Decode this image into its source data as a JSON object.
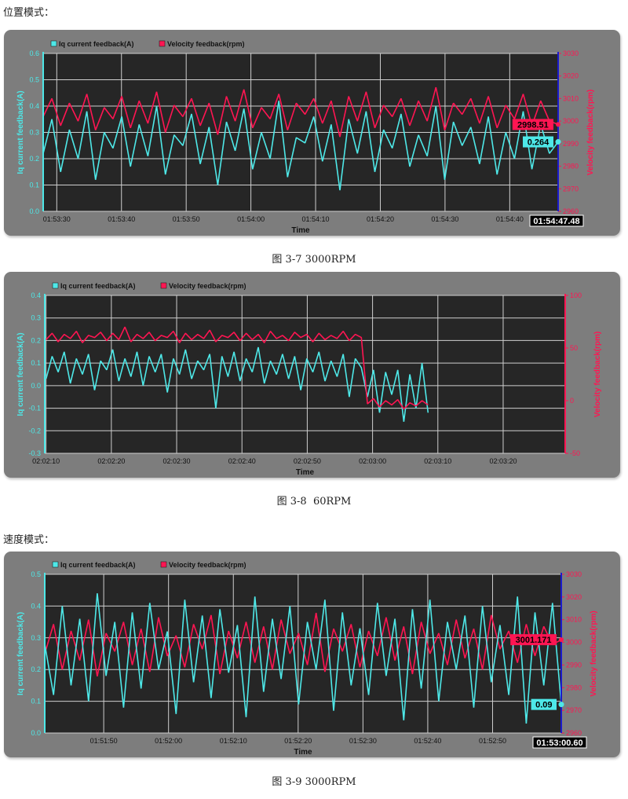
{
  "sections": {
    "position_mode": "位置模式：",
    "speed_mode": "速度模式："
  },
  "captions": [
    "图 3-7 3000RPM",
    "图 3-8  60RPM",
    "图 3-9 3000RPM"
  ],
  "colors": {
    "iq": "#4ee8e8",
    "velocity": "#ff1552",
    "plot_bg": "#262626",
    "panel_bg": "#7d7d7d",
    "grid": "#cfcfcf",
    "cursor_axis": "#1a1acc"
  },
  "chart_data": [
    {
      "type": "line",
      "legend": [
        "Iq current feedback(A)",
        "Velocity feedback(rpm)"
      ],
      "legend_placement": "top-left",
      "xlabel": "Time",
      "ylabel_left": "Iq current feedback(A)",
      "ylabel_right": "Velocity feedback(rpm)",
      "x_range": [
        "01:53:27.9",
        "01:54:47.48"
      ],
      "x_ticks": [
        "01:53:30",
        "01:53:40",
        "01:53:50",
        "01:54:00",
        "01:54:10",
        "01:54:20",
        "01:54:30",
        "01:54:40"
      ],
      "ylim_left": [
        0,
        0.6
      ],
      "y_ticks_left": [
        "0.0",
        "0.1",
        "0.2",
        "0.3",
        "0.4",
        "0.5",
        "0.6"
      ],
      "ylim_right": [
        2960,
        3030
      ],
      "y_ticks_right": [
        "2960",
        "2970",
        "2980",
        "2990",
        "3000",
        "3010",
        "3020",
        "3030"
      ],
      "grid": true,
      "right_axis_color": "cursor",
      "cursor_time": "01:54:47.48",
      "cursor_values": {
        "velocity": "2998.51",
        "iq": "0.264"
      },
      "series": [
        {
          "name": "Iq current feedback(A)",
          "x_range": [
            "01:53:27.9",
            "01:54:47.48"
          ],
          "values": [
            0.22,
            0.35,
            0.15,
            0.31,
            0.2,
            0.38,
            0.12,
            0.3,
            0.24,
            0.36,
            0.17,
            0.33,
            0.21,
            0.4,
            0.14,
            0.29,
            0.25,
            0.37,
            0.18,
            0.32,
            0.1,
            0.34,
            0.23,
            0.39,
            0.16,
            0.3,
            0.2,
            0.42,
            0.13,
            0.28,
            0.26,
            0.36,
            0.19,
            0.33,
            0.08,
            0.35,
            0.22,
            0.38,
            0.15,
            0.31,
            0.24,
            0.37,
            0.17,
            0.29,
            0.21,
            0.4,
            0.12,
            0.34,
            0.25,
            0.32,
            0.18,
            0.36,
            0.14,
            0.3,
            0.2,
            0.38,
            0.16,
            0.33,
            0.22,
            0.264
          ]
        },
        {
          "name": "Velocity feedback(rpm)",
          "x_range": [
            "01:53:27.9",
            "01:54:47.48"
          ],
          "values": [
            3002,
            3010,
            2998,
            3008,
            3000,
            3012,
            2996,
            3006,
            3001,
            3011,
            2997,
            3009,
            2999,
            3013,
            2995,
            3007,
            3002,
            3010,
            2998,
            3008,
            2994,
            3011,
            3000,
            3014,
            2997,
            3006,
            3001,
            3012,
            2996,
            3008,
            3003,
            3010,
            2999,
            3009,
            2993,
            3011,
            3000,
            3013,
            2997,
            3007,
            3002,
            3010,
            2998,
            3009,
            3000,
            3015,
            2996,
            3008,
            3003,
            3010,
            2999,
            3011,
            2997,
            3007,
            3001,
            3012,
            2998,
            3009,
            3000,
            2998.51
          ]
        }
      ]
    },
    {
      "type": "line",
      "legend": [
        "Iq current feedback(A)",
        "Velocity feedback(rpm)"
      ],
      "legend_placement": "top-left",
      "xlabel": "Time",
      "ylabel_left": "Iq current feedback(A)",
      "ylabel_right": "Velocity feedback(rpm)",
      "x_range": [
        "02:02:09.8",
        "02:03:29.5"
      ],
      "x_ticks": [
        "02:02:10",
        "02:02:20",
        "02:02:30",
        "02:02:40",
        "02:02:50",
        "02:03:00",
        "02:03:10",
        "02:03:20"
      ],
      "ylim_left": [
        -0.3,
        0.4
      ],
      "y_ticks_left": [
        "-0.3",
        "-0.2",
        "-0.1",
        "0.0",
        "0.1",
        "0.2",
        "0.3",
        "0.4"
      ],
      "ylim_right": [
        -50,
        100
      ],
      "y_ticks_right": [
        "-50",
        "0",
        "50",
        "100"
      ],
      "grid": true,
      "right_axis_color": "velocity",
      "series": [
        {
          "name": "Iq current feedback(A)",
          "x_range": [
            "02:02:10",
            "02:03:08.5"
          ],
          "values": [
            0.03,
            0.13,
            0.06,
            0.15,
            0.01,
            0.12,
            0.05,
            0.14,
            -0.02,
            0.11,
            0.07,
            0.16,
            0.02,
            0.12,
            0.04,
            0.15,
            0.0,
            0.13,
            0.06,
            0.14,
            -0.03,
            0.12,
            0.05,
            0.16,
            0.03,
            0.11,
            0.07,
            0.14,
            -0.1,
            0.13,
            0.04,
            0.15,
            0.02,
            0.12,
            0.06,
            0.17,
            0.01,
            0.11,
            0.05,
            0.14,
            0.03,
            0.13,
            -0.02,
            0.12,
            0.06,
            0.15,
            0.02,
            0.11,
            0.04,
            0.14,
            -0.05,
            0.12,
            0.08,
            -0.05,
            0.07,
            -0.12,
            0.06,
            -0.04,
            0.07,
            -0.16,
            0.05,
            -0.1,
            0.1,
            -0.12
          ]
        },
        {
          "name": "Velocity feedback(rpm)",
          "x_range": [
            "02:02:10",
            "02:03:08.5"
          ],
          "values": [
            58,
            64,
            56,
            63,
            59,
            66,
            55,
            62,
            60,
            65,
            57,
            64,
            58,
            70,
            56,
            63,
            59,
            65,
            57,
            62,
            60,
            66,
            55,
            64,
            58,
            63,
            59,
            67,
            56,
            62,
            60,
            65,
            57,
            64,
            58,
            63,
            55,
            66,
            59,
            62,
            57,
            65,
            60,
            63,
            56,
            64,
            58,
            62,
            59,
            66,
            57,
            63,
            60,
            -3,
            2,
            -6,
            0,
            -4,
            1,
            -8,
            -2,
            -5,
            0,
            -4
          ]
        }
      ]
    },
    {
      "type": "line",
      "legend": [
        "Iq current feedback(A)",
        "Velocity feedback(rpm)"
      ],
      "legend_placement": "top-left",
      "xlabel": "Time",
      "ylabel_left": "Iq current feedback(A)",
      "ylabel_right": "Velocity feedback(rpm)",
      "x_range": [
        "01:51:40.9",
        "01:53:00.60"
      ],
      "x_ticks": [
        "01:51:50",
        "01:52:00",
        "01:52:10",
        "01:52:20",
        "01:52:30",
        "01:52:40",
        "01:52:50"
      ],
      "ylim_left": [
        0,
        0.5
      ],
      "y_ticks_left": [
        "0.0",
        "0.1",
        "0.2",
        "0.3",
        "0.4",
        "0.5"
      ],
      "ylim_right": [
        2960,
        3030
      ],
      "y_ticks_right": [
        "2960",
        "2970",
        "2980",
        "2990",
        "3000",
        "3010",
        "3020",
        "3030"
      ],
      "grid": true,
      "right_axis_color": "cursor",
      "cursor_time": "01:53:00.60",
      "cursor_values": {
        "velocity": "3001.171",
        "iq": "0.09"
      },
      "series": [
        {
          "name": "Velocity feedback(rpm)",
          "x_range": [
            "01:51:40.9",
            "01:53:00.60"
          ],
          "values": [
            2995,
            3008,
            2988,
            3005,
            2992,
            3010,
            2985,
            3004,
            2996,
            3009,
            2990,
            3006,
            2987,
            3011,
            2994,
            3003,
            2989,
            3008,
            2997,
            3012,
            2986,
            3005,
            2993,
            3009,
            2991,
            3007,
            2988,
            3010,
            2995,
            3004,
            2990,
            3013,
            2987,
            3006,
            2996,
            3008,
            2989,
            3005,
            2994,
            3011,
            2992,
            3007,
            2986,
            3009,
            2995,
            3004,
            2990,
            3010,
            2993,
            3006,
            2988,
            3012,
            2997,
            3005,
            2991,
            3008,
            2994,
            3007,
            2999,
            3001.171
          ]
        },
        {
          "name": "Iq current feedback(A)",
          "x_range": [
            "01:51:40.9",
            "01:53:00.60"
          ],
          "values": [
            0.28,
            0.12,
            0.4,
            0.15,
            0.36,
            0.1,
            0.44,
            0.18,
            0.35,
            0.08,
            0.38,
            0.14,
            0.41,
            0.2,
            0.32,
            0.06,
            0.42,
            0.16,
            0.37,
            0.11,
            0.39,
            0.19,
            0.34,
            0.05,
            0.43,
            0.13,
            0.36,
            0.17,
            0.4,
            0.09,
            0.35,
            0.2,
            0.42,
            0.07,
            0.38,
            0.15,
            0.33,
            0.12,
            0.41,
            0.18,
            0.36,
            0.04,
            0.39,
            0.14,
            0.42,
            0.1,
            0.35,
            0.2,
            0.37,
            0.08,
            0.4,
            0.16,
            0.34,
            0.12,
            0.43,
            0.03,
            0.38,
            0.15,
            0.41,
            0.09
          ]
        }
      ]
    }
  ]
}
